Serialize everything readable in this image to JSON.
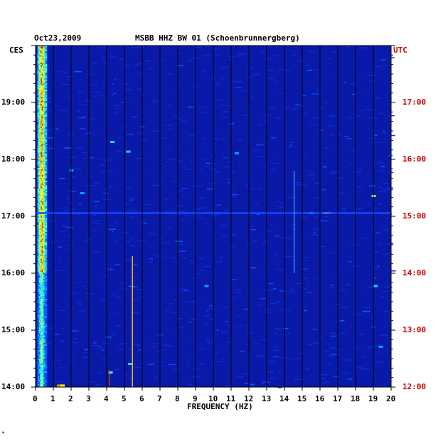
{
  "chart_data": {
    "type": "heatmap",
    "title_date": "Oct23,2009",
    "title_station": "MSBB HHZ BW 01 (Schoenbrunnergberg)",
    "xlabel": "FREQUENCY (HZ)",
    "x_ticks": [
      "0",
      "1",
      "2",
      "3",
      "4",
      "5",
      "6",
      "7",
      "8",
      "9",
      "10",
      "11",
      "12",
      "13",
      "14",
      "15",
      "16",
      "17",
      "18",
      "19",
      "20"
    ],
    "xlim": [
      0,
      20
    ],
    "left_timezone": "CES",
    "right_timezone": "UTC",
    "left_time_labels": [
      {
        "label": "19:00",
        "hour": 19
      },
      {
        "label": "18:00",
        "hour": 18
      },
      {
        "label": "17:00",
        "hour": 17
      },
      {
        "label": "16:00",
        "hour": 16
      },
      {
        "label": "15:00",
        "hour": 15
      },
      {
        "label": "14:00",
        "hour": 14
      }
    ],
    "right_time_labels": [
      {
        "label": "17:00",
        "hour": 19
      },
      {
        "label": "16:00",
        "hour": 18
      },
      {
        "label": "15:00",
        "hour": 17
      },
      {
        "label": "14:00",
        "hour": 16
      },
      {
        "label": "13:00",
        "hour": 15
      },
      {
        "label": "12:00",
        "hour": 14
      }
    ],
    "ylim_hours_ces": [
      14,
      20
    ],
    "description_of_features": [
      {
        "kind": "band",
        "freq": [
          0.1,
          0.6
        ],
        "level": "high"
      },
      {
        "kind": "line",
        "freq": 5.45,
        "hours": [
          14,
          16.3
        ]
      },
      {
        "kind": "line",
        "freq": 14.55,
        "hours": [
          16.0,
          17.8
        ]
      },
      {
        "kind": "row",
        "hour": 17.05,
        "level": "medium"
      }
    ]
  },
  "footnote": "*"
}
